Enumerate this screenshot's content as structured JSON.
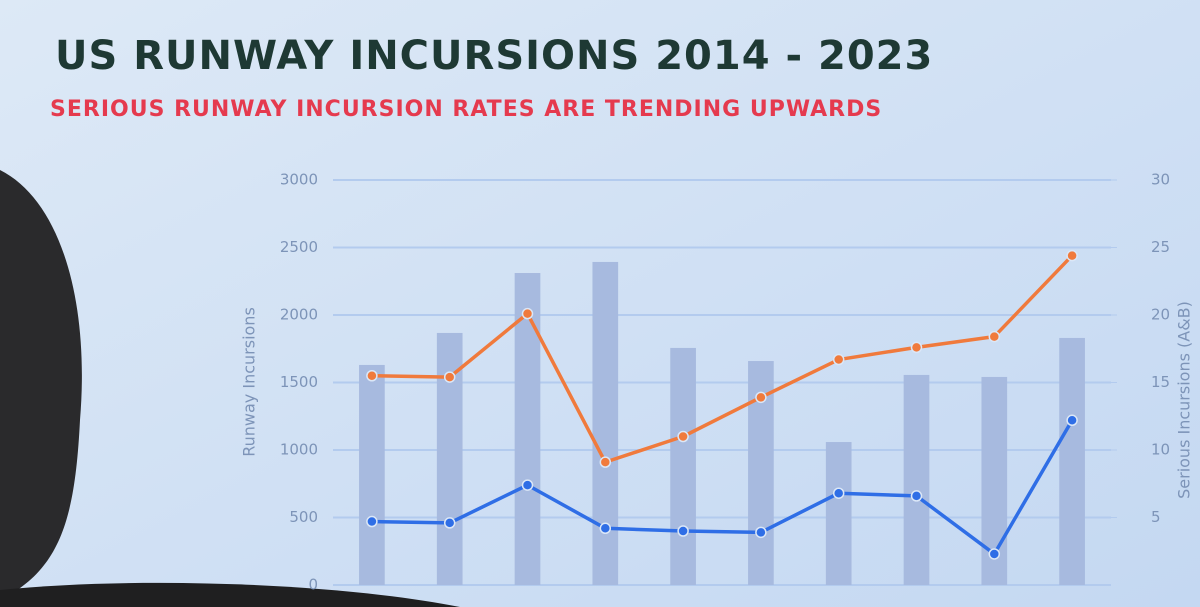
{
  "chart_data": {
    "type": "bar",
    "title": "US RUNWAY INCURSIONS 2014 - 2023",
    "subtitle": "SERIOUS RUNWAY INCURSION RATES ARE TRENDING UPWARDS",
    "ylabel": "Runway Incursions",
    "y2label": "Serious Incursions (A&B)",
    "categories": [
      null,
      null,
      null,
      null,
      null,
      null,
      null,
      null,
      null,
      null
    ],
    "series": [
      {
        "type": "bar",
        "color": "#a7badf",
        "values": [
          1630,
          1867,
          2311,
          2393,
          1756,
          1659,
          1059,
          1556,
          1541,
          1830
        ]
      },
      {
        "type": "line",
        "axis": "y2",
        "color": "#f07a3c",
        "values": [
          15.5,
          15.4,
          20.1,
          9.1,
          11,
          13.9,
          16.7,
          17.6,
          18.4,
          24.4
        ]
      },
      {
        "type": "line",
        "axis": "y2",
        "color": "#2f6ee6",
        "values": [
          4.7,
          4.6,
          7.4,
          4.2,
          4,
          3.9,
          6.8,
          6.6,
          2.3,
          12.2
        ]
      }
    ],
    "ylim": [
      0,
      3000
    ],
    "yticks": [
      0,
      500,
      1000,
      1500,
      2000,
      2500,
      3000
    ],
    "y2lim": [
      0,
      30
    ],
    "y2ticks": [
      5,
      10,
      15,
      20,
      25,
      30
    ],
    "grid": true
  }
}
